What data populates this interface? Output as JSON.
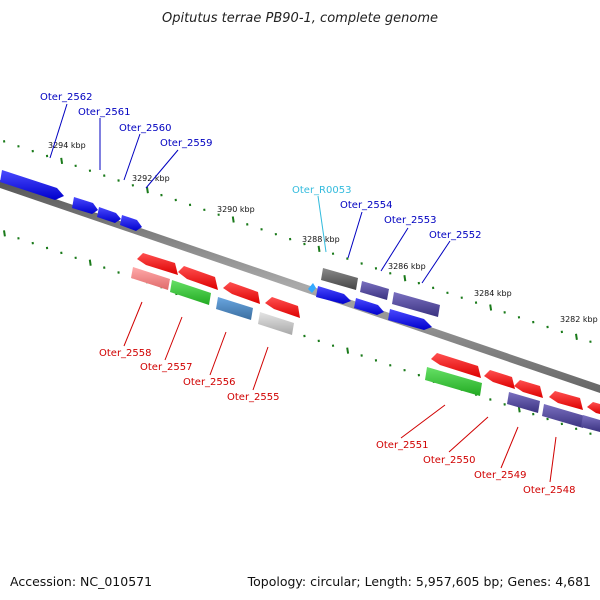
{
  "title": "Opitutus terrae PB90-1, complete genome",
  "accession": "Accession: NC_010571",
  "topology": "Topology: circular; Length: 5,957,605 bp; Genes: 4,681",
  "colors": {
    "forward_label": "#0000c0",
    "reverse_label": "#d00000",
    "rna_label": "#33bbdd",
    "backbone": "#888888",
    "tick": "#1a7a1a"
  },
  "kbp_labels": [
    "3294 kbp",
    "3292 kbp",
    "3290 kbp",
    "3288 kbp",
    "3286 kbp",
    "3284 kbp",
    "3282 kbp"
  ],
  "forward_genes": [
    {
      "name": "Oter_2562",
      "color": "blue"
    },
    {
      "name": "Oter_2561",
      "color": "blue"
    },
    {
      "name": "Oter_2560",
      "color": "blue"
    },
    {
      "name": "Oter_2559",
      "color": "blue"
    },
    {
      "name": "Oter_R0053",
      "color": "cyan"
    },
    {
      "name": "Oter_2554",
      "color": "darkgray"
    },
    {
      "name": "Oter_2553",
      "color": "slate"
    },
    {
      "name": "Oter_2552",
      "color": "slate"
    }
  ],
  "reverse_genes": [
    {
      "name": "Oter_2558",
      "color": "pink"
    },
    {
      "name": "Oter_2557",
      "color": "green"
    },
    {
      "name": "Oter_2556",
      "color": "steelblue"
    },
    {
      "name": "Oter_2555",
      "color": "lightgray"
    },
    {
      "name": "Oter_2551",
      "color": "green"
    },
    {
      "name": "Oter_2550",
      "color": "red"
    },
    {
      "name": "Oter_2549",
      "color": "slate"
    },
    {
      "name": "Oter_2548",
      "color": "slate"
    }
  ]
}
